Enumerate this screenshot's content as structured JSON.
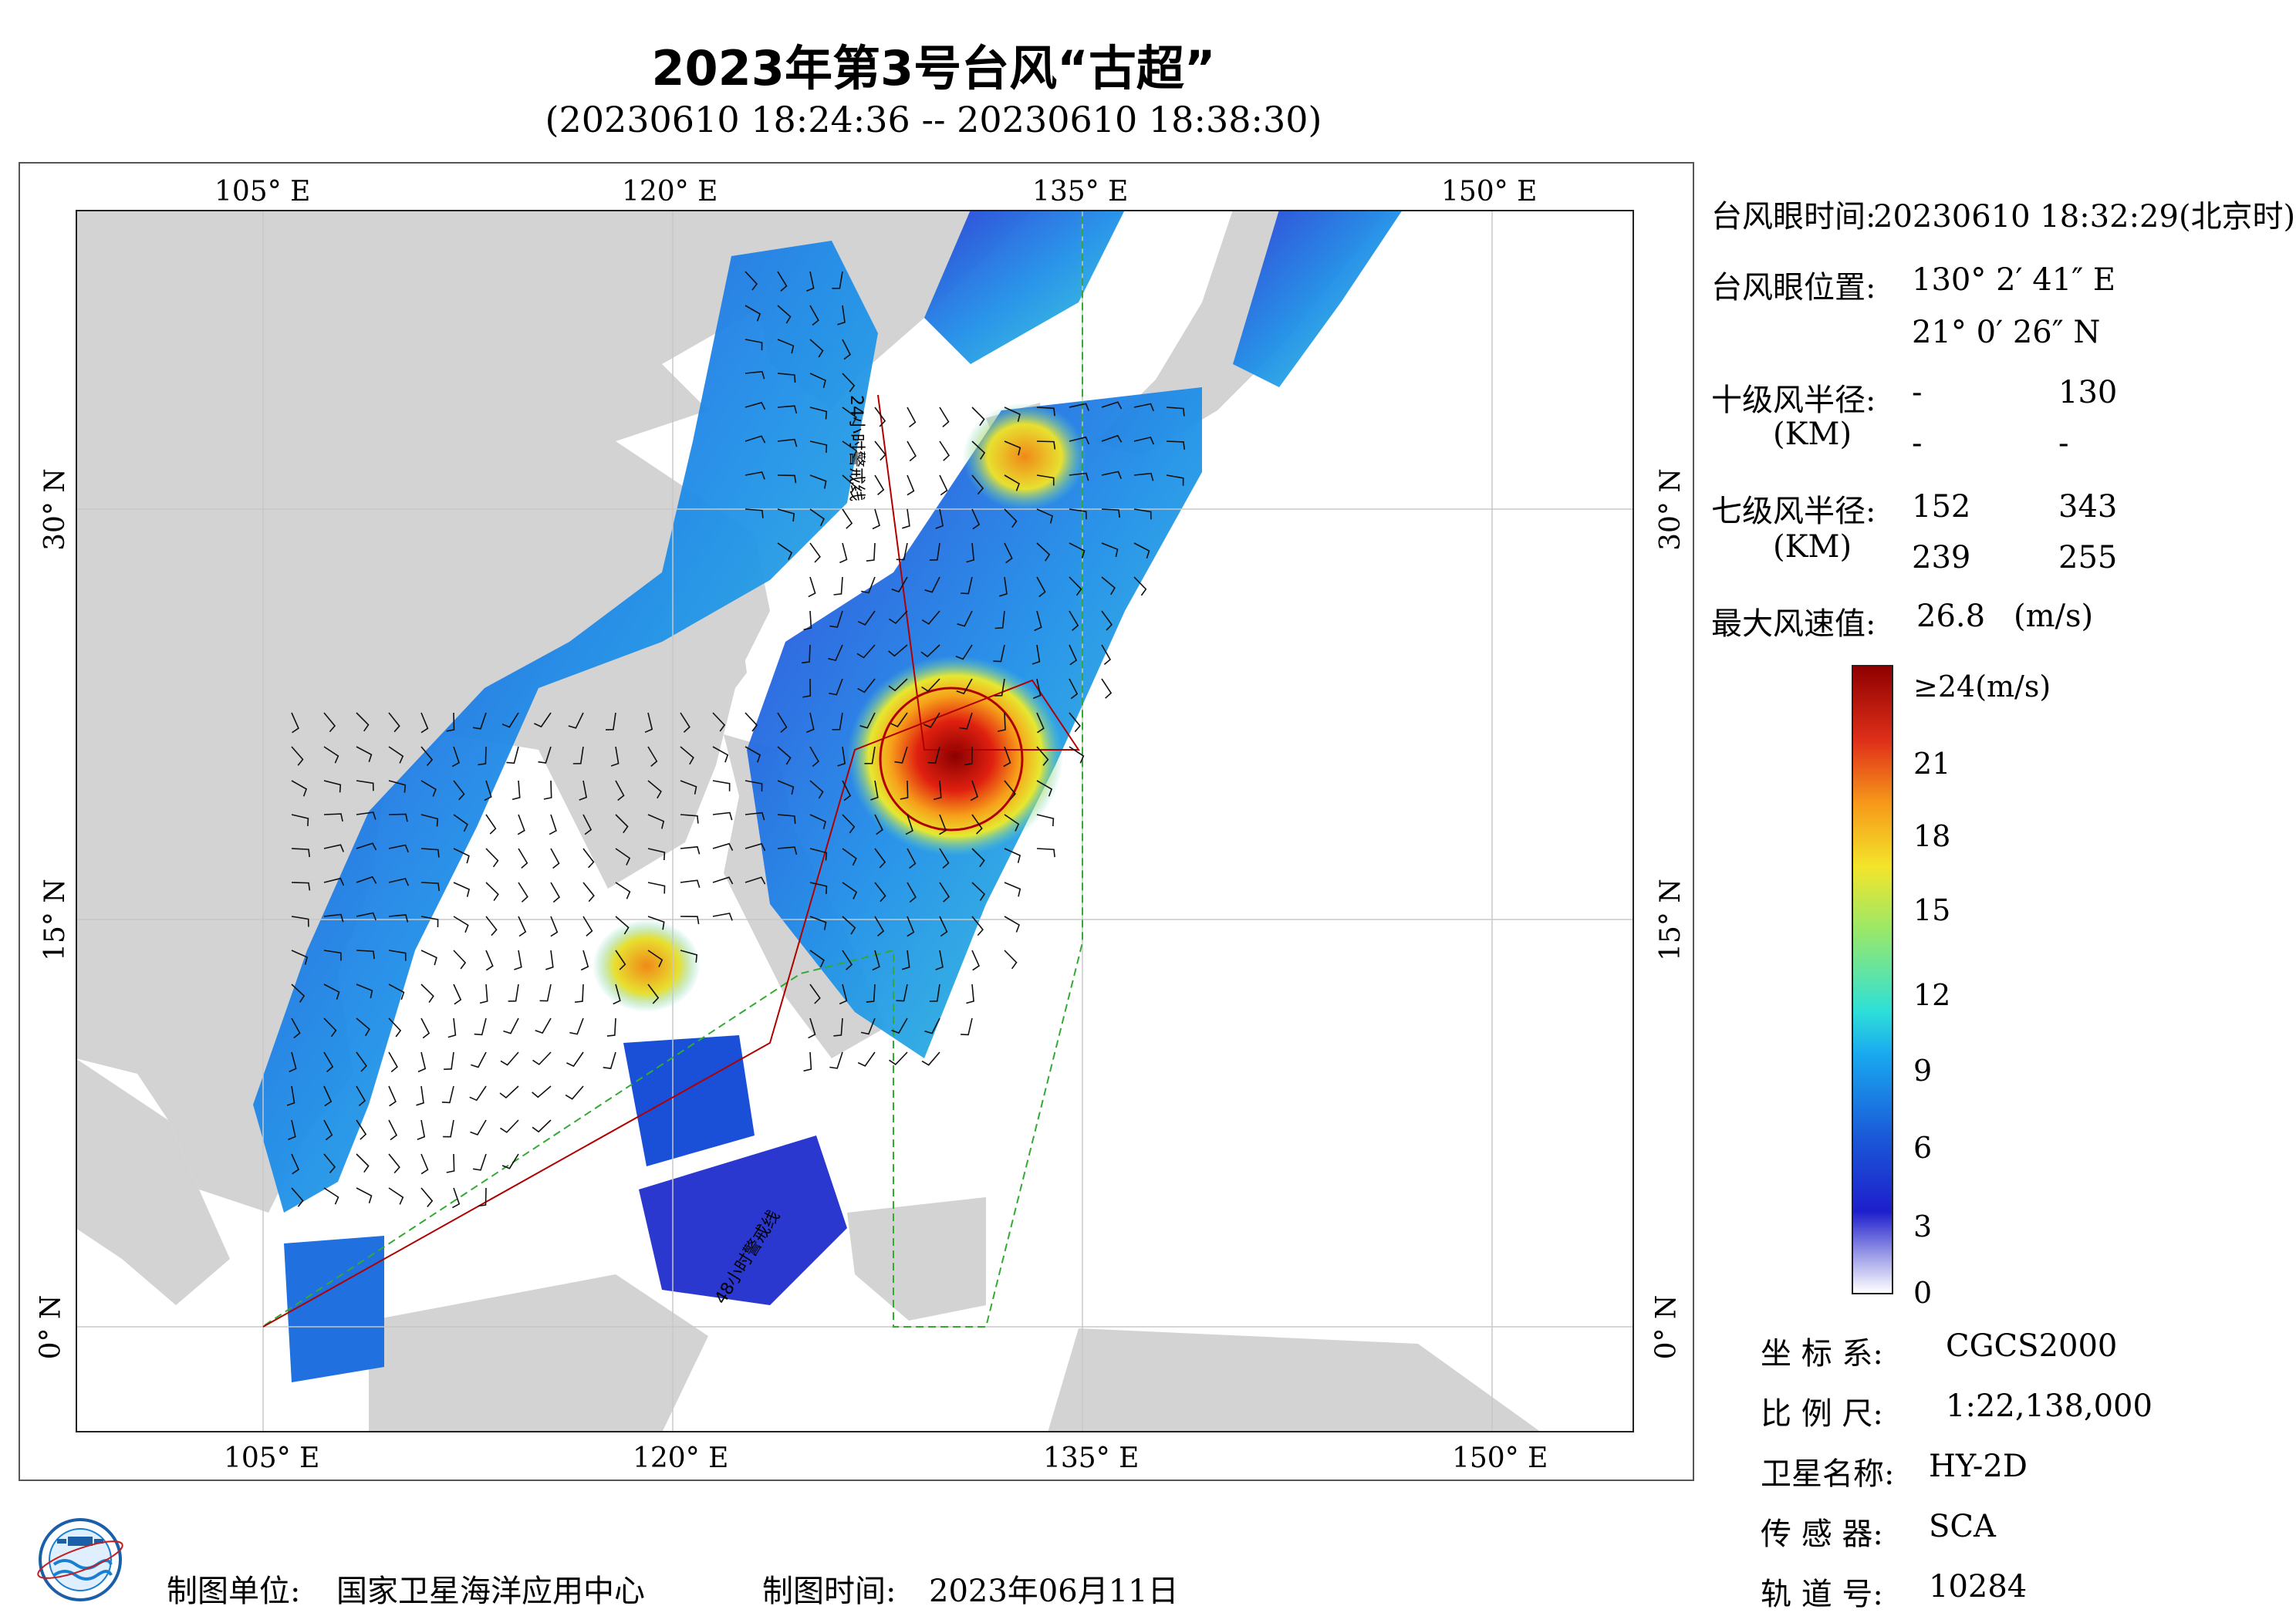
{
  "header": {
    "title": "2023年第3号台风“古超”",
    "subtitle": "(20230610 18:24:36 -- 20230610 18:38:30)"
  },
  "map": {
    "lon_labels": [
      "105° E",
      "120° E",
      "135° E",
      "150° E"
    ],
    "lat_labels": [
      "30° N",
      "15° N",
      "0° N"
    ],
    "track_labels": [
      "24小时警戒线",
      "48小时警戒线"
    ],
    "colors": {
      "land": "#d3d3d3",
      "sea": "#ffffff",
      "warning24": "#b00000",
      "warning48": "#33aa33",
      "typhoon_circle": "#b00000"
    },
    "wind_field_shown": true
  },
  "info_panel": {
    "eye_time_label": "台风眼时间:",
    "eye_time_value": "20230610 18:32:29(北京时)",
    "eye_pos_label": "台风眼位置:",
    "eye_lon": "130° 2′ 41″ E",
    "eye_lat": "21° 0′ 26″ N",
    "r10_label": "十级风半径:",
    "r10_unit": "(KM)",
    "r10_values": [
      "-",
      "130",
      "-",
      "-"
    ],
    "r7_label": "七级风半径:",
    "r7_unit": "(KM)",
    "r7_values": [
      "152",
      "343",
      "239",
      "255"
    ],
    "max_wind_label": "最大风速值:",
    "max_wind_value": "26.8",
    "max_wind_unit": "(m/s)"
  },
  "colorbar": {
    "ticks": [
      "≥24(m/s)",
      "21",
      "18",
      "15",
      "12",
      "9",
      "6",
      "3",
      "0"
    ],
    "min": 0,
    "max": 24
  },
  "meta": {
    "crs_label": "坐 标 系:",
    "crs_value": "CGCS2000",
    "scale_label": "比 例 尺:",
    "scale_value": "1:22,138,000",
    "satellite_label": "卫星名称:",
    "satellite_value": "HY-2D",
    "sensor_label": "传 感 器:",
    "sensor_value": "SCA",
    "orbit_label": "轨 道 号:",
    "orbit_value": "10284"
  },
  "footer": {
    "unit_label": "制图单位:",
    "unit_value": "国家卫星海洋应用中心",
    "time_label": "制图时间:",
    "time_value": "2023年06月11日"
  }
}
